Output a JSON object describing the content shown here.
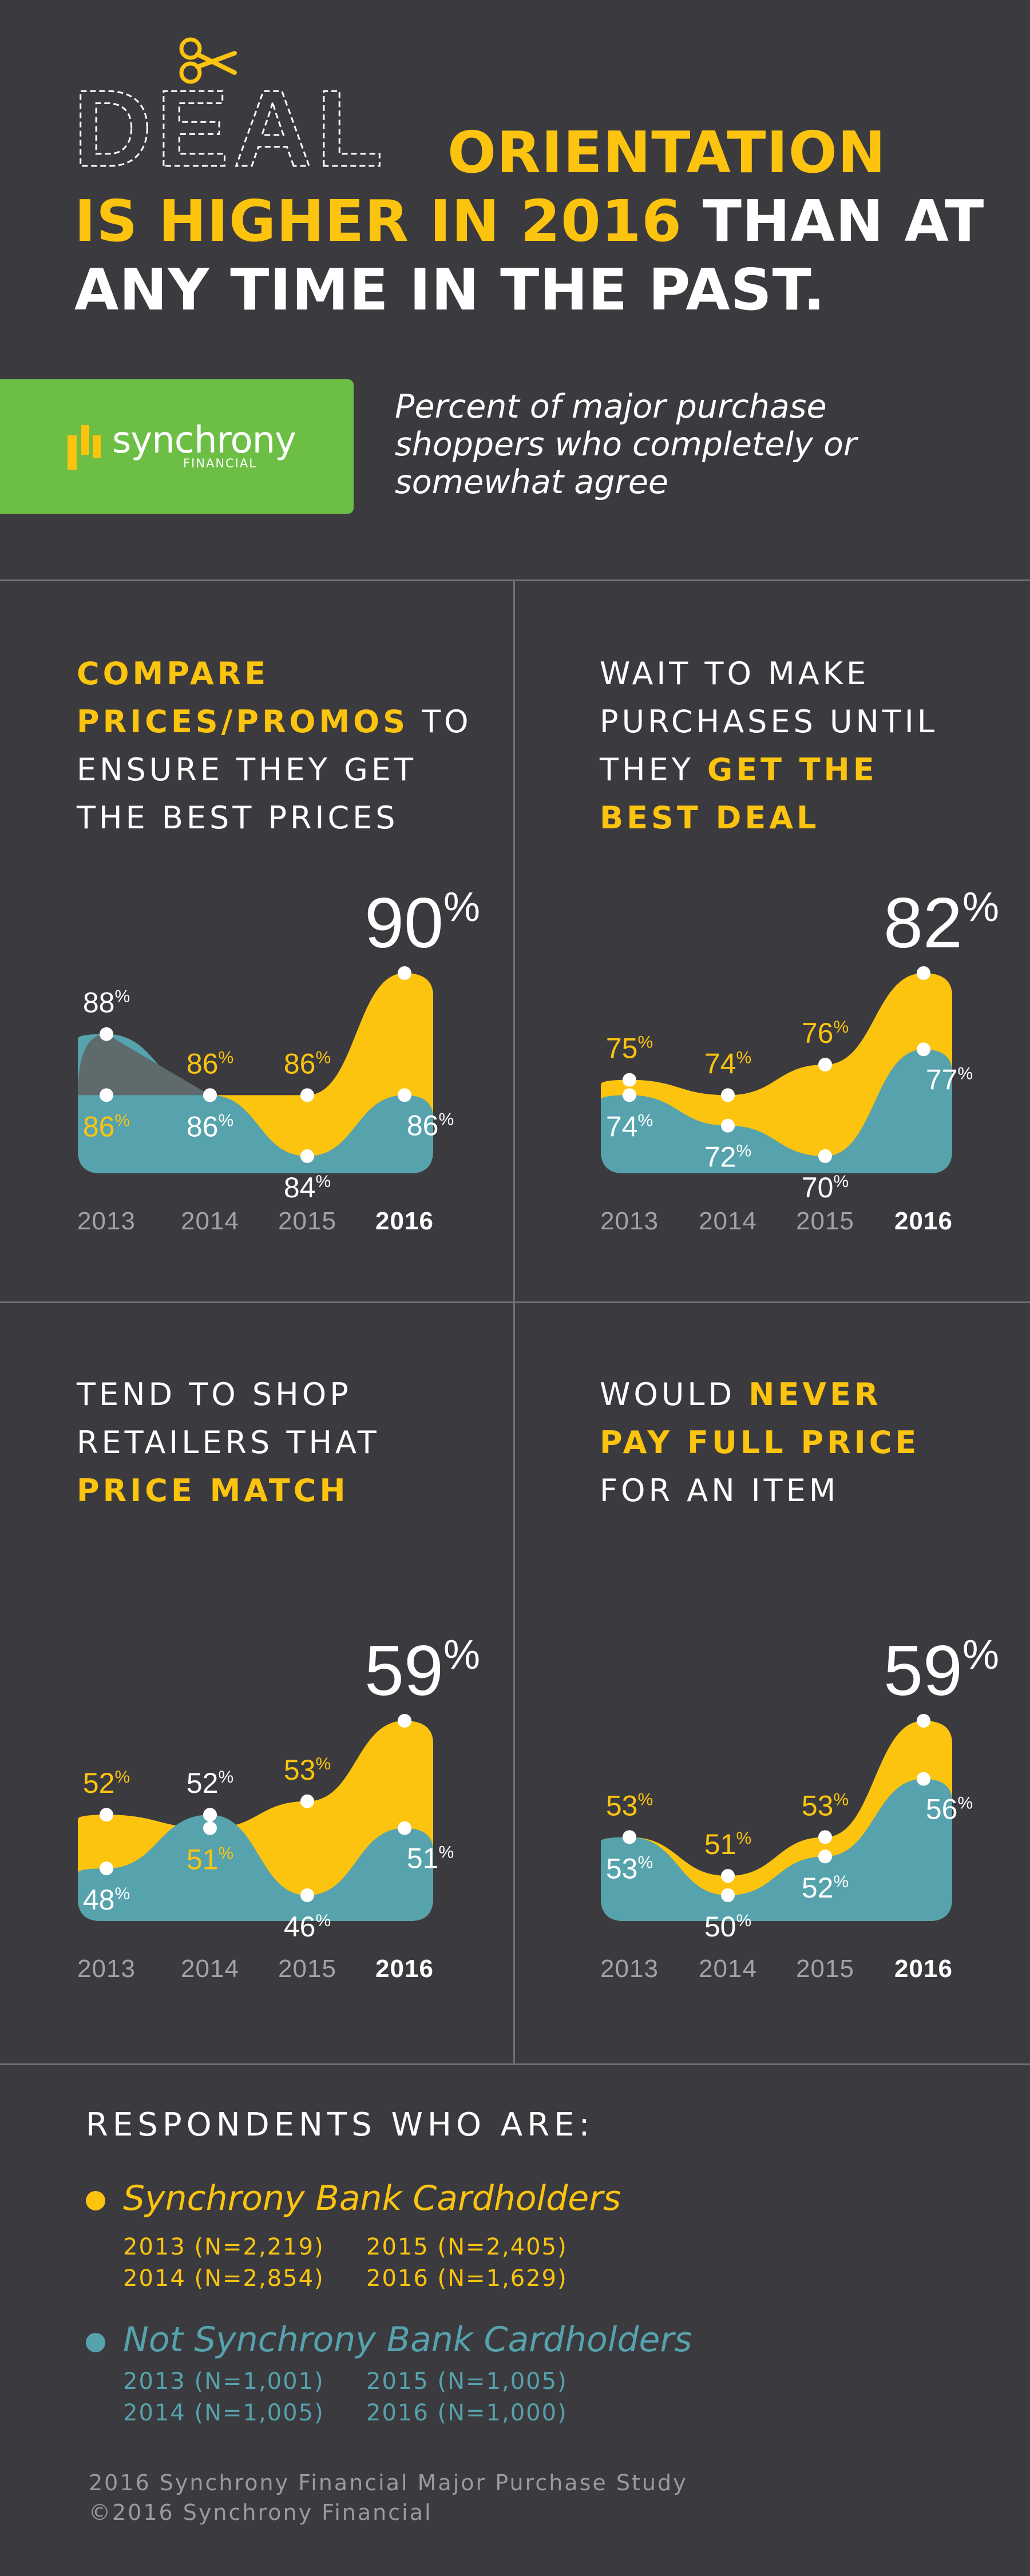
{
  "header": {
    "deal_word": "DEAL",
    "line1_rest": "ORIENTATION",
    "line2_yellow": "IS HIGHER IN 2016",
    "line2_white": "THAN AT",
    "line3": "ANY TIME IN THE PAST."
  },
  "logo": {
    "name": "synchrony",
    "sub": "FINANCIAL"
  },
  "subtitle": [
    "Percent of major purchase",
    "shoppers who completely or",
    "somewhat agree"
  ],
  "colors": {
    "background": "#3b3b3f",
    "yellow": "#fcc40f",
    "teal": "#56a2ad",
    "green": "#6cbe45",
    "grey_label": "#a3a3a7"
  },
  "panels": [
    {
      "title_lines": [
        [
          {
            "t": "COMPARE",
            "b": true
          }
        ],
        [
          {
            "t": "PRICES/PROMOS",
            "b": true
          },
          {
            "t": " TO",
            "b": false
          }
        ],
        [
          {
            "t": "ENSURE THEY GET",
            "b": false
          }
        ],
        [
          {
            "t": "THE BEST PRICES",
            "b": false
          }
        ]
      ],
      "big": "90",
      "big_unit": "%"
    },
    {
      "title_lines": [
        [
          {
            "t": "WAIT TO MAKE",
            "b": false
          }
        ],
        [
          {
            "t": "PURCHASES UNTIL",
            "b": false
          }
        ],
        [
          {
            "t": "THEY ",
            "b": false
          },
          {
            "t": "GET THE",
            "b": true
          }
        ],
        [
          {
            "t": "BEST DEAL",
            "b": true
          }
        ]
      ],
      "big": "82",
      "big_unit": "%"
    },
    {
      "title_lines": [
        [
          {
            "t": "TEND TO SHOP",
            "b": false
          }
        ],
        [
          {
            "t": "RETAILERS THAT",
            "b": false
          }
        ],
        [
          {
            "t": "PRICE MATCH",
            "b": true
          }
        ]
      ],
      "big": "59",
      "big_unit": "%"
    },
    {
      "title_lines": [
        [
          {
            "t": "WOULD ",
            "b": false
          },
          {
            "t": "NEVER",
            "b": true
          }
        ],
        [
          {
            "t": "PAY FULL PRICE",
            "b": true
          }
        ],
        [
          {
            "t": "FOR AN ITEM",
            "b": false
          }
        ]
      ],
      "big": "59",
      "big_unit": "%"
    }
  ],
  "chart_data": [
    {
      "type": "area",
      "title": "COMPARE PRICES/PROMOS TO ENSURE THEY GET THE BEST PRICES",
      "categories": [
        "2013",
        "2014",
        "2015",
        "2016"
      ],
      "series": [
        {
          "name": "Synchrony Bank Cardholders",
          "values": [
            86,
            86,
            86,
            90
          ]
        },
        {
          "name": "Not Synchrony Bank Cardholders",
          "values": [
            88,
            86,
            84,
            86
          ]
        }
      ]
    },
    {
      "type": "area",
      "title": "WAIT TO MAKE PURCHASES UNTIL THEY GET THE BEST DEAL",
      "categories": [
        "2013",
        "2014",
        "2015",
        "2016"
      ],
      "series": [
        {
          "name": "Synchrony Bank Cardholders",
          "values": [
            75,
            74,
            76,
            82
          ]
        },
        {
          "name": "Not Synchrony Bank Cardholders",
          "values": [
            74,
            72,
            70,
            77
          ]
        }
      ]
    },
    {
      "type": "area",
      "title": "TEND TO SHOP RETAILERS THAT PRICE MATCH",
      "categories": [
        "2013",
        "2014",
        "2015",
        "2016"
      ],
      "series": [
        {
          "name": "Synchrony Bank Cardholders",
          "values": [
            52,
            51,
            53,
            59
          ]
        },
        {
          "name": "Not Synchrony Bank Cardholders",
          "values": [
            48,
            52,
            46,
            51
          ]
        }
      ]
    },
    {
      "type": "area",
      "title": "WOULD NEVER PAY FULL PRICE FOR AN ITEM",
      "categories": [
        "2013",
        "2014",
        "2015",
        "2016"
      ],
      "series": [
        {
          "name": "Synchrony Bank Cardholders",
          "values": [
            53,
            51,
            53,
            59
          ]
        },
        {
          "name": "Not Synchrony Bank Cardholders",
          "values": [
            53,
            50,
            52,
            56
          ]
        }
      ]
    }
  ],
  "legend": {
    "title": "RESPONDENTS WHO ARE:",
    "groups": [
      {
        "name": "Synchrony Bank Cardholders",
        "color": "#fcc40f",
        "n": [
          "2013 (N=2,219)",
          "2015 (N=2,405)",
          "2014 (N=2,854)",
          "2016 (N=1,629)"
        ]
      },
      {
        "name": "Not Synchrony Bank Cardholders",
        "color": "#56a2ad",
        "n": [
          "2013 (N=1,001)",
          "2015 (N=1,005)",
          "2014 (N=1,005)",
          "2016 (N=1,000)"
        ]
      }
    ]
  },
  "footer": [
    "2016 Synchrony Financial Major Purchase Study",
    "©2016 Synchrony Financial"
  ]
}
